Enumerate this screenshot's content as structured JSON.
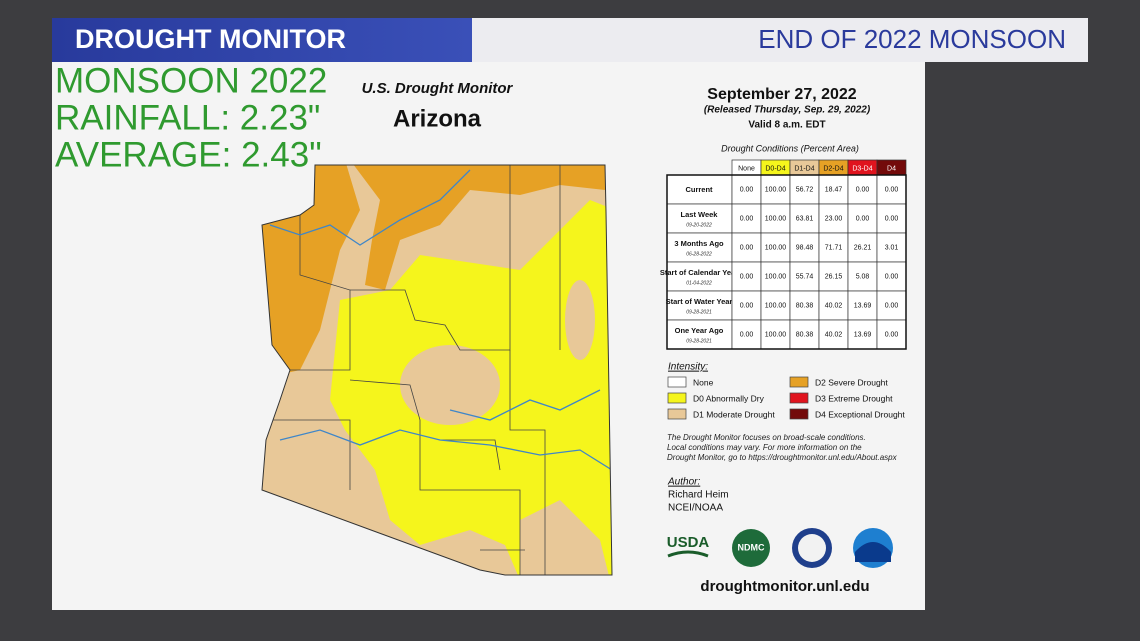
{
  "header": {
    "left": "DROUGHT MONITOR",
    "right": "END OF 2022 MONSOON"
  },
  "overlay": {
    "lines": [
      "MONSOON 2022",
      "RAINFALL: 2.23\"",
      "AVERAGE: 2.43\""
    ]
  },
  "map": {
    "source": "U.S. Drought Monitor",
    "state": "Arizona"
  },
  "info": {
    "date": "September 27, 2022",
    "released": "(Released Thursday, Sep. 29, 2022)",
    "valid": "Valid 8 a.m. EDT",
    "table_caption": "Drought Conditions (Percent Area)",
    "table": {
      "columns": [
        "None",
        "D0-D4",
        "D1-D4",
        "D2-D4",
        "D3-D4",
        "D4"
      ],
      "rows": [
        {
          "label": "Current",
          "date": null,
          "values": [
            "0.00",
            "100.00",
            "56.72",
            "18.47",
            "0.00",
            "0.00"
          ]
        },
        {
          "label": "Last Week",
          "date": "09-20-2022",
          "values": [
            "0.00",
            "100.00",
            "63.81",
            "23.00",
            "0.00",
            "0.00"
          ]
        },
        {
          "label": "3 Months Ago",
          "date": "06-28-2022",
          "values": [
            "0.00",
            "100.00",
            "98.48",
            "71.71",
            "26.21",
            "3.01"
          ]
        },
        {
          "label": "Start of Calendar Year",
          "date": "01-04-2022",
          "values": [
            "0.00",
            "100.00",
            "55.74",
            "26.15",
            "5.08",
            "0.00"
          ]
        },
        {
          "label": "Start of Water Year",
          "date": "09-28-2021",
          "values": [
            "0.00",
            "100.00",
            "80.38",
            "40.02",
            "13.69",
            "0.00"
          ]
        },
        {
          "label": "One Year Ago",
          "date": "09-28-2021",
          "values": [
            "0.00",
            "100.00",
            "80.38",
            "40.02",
            "13.69",
            "0.00"
          ]
        }
      ]
    },
    "legend_title": "Intensity:",
    "legend": [
      {
        "label": "None",
        "color": "#ffffff"
      },
      {
        "label": "D0 Abnormally Dry",
        "color": "#f5f51c"
      },
      {
        "label": "D1 Moderate Drought",
        "color": "#e8c898"
      },
      {
        "label": "D2 Severe Drought",
        "color": "#e6a125"
      },
      {
        "label": "D3 Extreme Drought",
        "color": "#e0141e"
      },
      {
        "label": "D4 Exceptional Drought",
        "color": "#730a0a"
      }
    ],
    "note": [
      "The Drought Monitor focuses on broad-scale conditions.",
      "Local conditions may vary. For more information on the",
      "Drought Monitor, go to https://droughtmonitor.unl.edu/About.aspx"
    ],
    "author_title": "Author:",
    "author": [
      "Richard Heim",
      "NCEI/NOAA"
    ],
    "logos": [
      "USDA",
      "NDMC"
    ],
    "url": "droughtmonitor.unl.edu"
  }
}
